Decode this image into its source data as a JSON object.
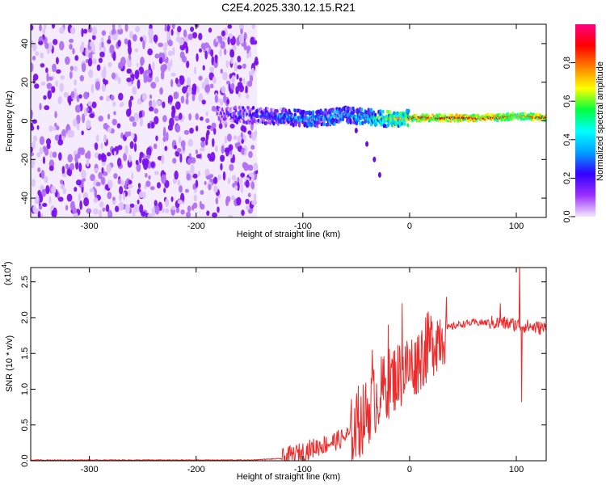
{
  "figure_title": "C2E4.2025.330.12.15.R21",
  "chart_data": [
    {
      "type": "heatmap",
      "title": "C2E4.2025.330.12.15.R21",
      "xlabel": "Height of straight line (km)",
      "ylabel": "Frequency (Hz)",
      "xlim": [
        -355,
        128
      ],
      "ylim": [
        -50,
        50
      ],
      "x_ticks": [
        -300,
        -200,
        -100,
        0,
        100
      ],
      "x_tick_labels": [
        "-300",
        "-200",
        "-100",
        "0",
        "100"
      ],
      "y_ticks": [
        -40,
        -20,
        0,
        20,
        40
      ],
      "y_tick_labels": [
        "-40",
        "-20",
        "0",
        "20",
        "40"
      ],
      "colorbar": {
        "label": "Normalized spectral amplitude",
        "range": [
          0,
          1
        ],
        "ticks": [
          0.0,
          0.2,
          0.4,
          0.6,
          0.8
        ],
        "tick_labels": [
          "0.0",
          "0.2",
          "0.4",
          "0.6",
          "0.8"
        ],
        "colormap": [
          "#f2e6ff",
          "#9b30ff",
          "#3300ff",
          "#00a0ff",
          "#00ffff",
          "#00ff40",
          "#ffff00",
          "#ff8000",
          "#ff0000",
          "#ff0080"
        ]
      },
      "regions": {
        "broadband_noise": {
          "x_range": [
            -355,
            -143
          ],
          "freq_range": [
            -50,
            50
          ],
          "amplitude": 0.15
        },
        "signal_track": [
          {
            "x": -180,
            "freq": 3,
            "amp": 0.25
          },
          {
            "x": -150,
            "freq": 3,
            "amp": 0.35
          },
          {
            "x": -120,
            "freq": 2,
            "amp": 0.45
          },
          {
            "x": -90,
            "freq": 1,
            "amp": 0.5
          },
          {
            "x": -60,
            "freq": 3,
            "amp": 0.5
          },
          {
            "x": -40,
            "freq": 2,
            "amp": 0.55
          },
          {
            "x": -20,
            "freq": 1,
            "amp": 0.8
          },
          {
            "x": 0,
            "freq": 1.5,
            "amp": 0.85
          },
          {
            "x": 40,
            "freq": 1.5,
            "amp": 0.9
          },
          {
            "x": 80,
            "freq": 1.5,
            "amp": 0.9
          },
          {
            "x": 100,
            "freq": 2.5,
            "amp": 0.75
          },
          {
            "x": 128,
            "freq": 1.5,
            "amp": 0.9
          }
        ],
        "descending_tail": [
          {
            "x": -50,
            "freq": -5
          },
          {
            "x": -40,
            "freq": -12
          },
          {
            "x": -33,
            "freq": -20
          },
          {
            "x": -28,
            "freq": -28
          }
        ]
      }
    },
    {
      "type": "line",
      "xlabel": "Height of straight line (km)",
      "ylabel": "SNR (10 * v/v)",
      "y_scale_label": "(x10",
      "y_scale_exponent": "4",
      "y_scale_suffix": ")",
      "xlim": [
        -355,
        128
      ],
      "ylim": [
        0,
        2.7
      ],
      "x_ticks": [
        -300,
        -200,
        -100,
        0,
        100
      ],
      "x_tick_labels": [
        "-300",
        "-200",
        "-100",
        "0",
        "100"
      ],
      "y_ticks": [
        0,
        0.5,
        1.0,
        1.5,
        2.0,
        2.5
      ],
      "y_tick_labels": [
        "0.0",
        "0.5",
        "1.0",
        "1.5",
        "2.0",
        "2.5"
      ],
      "color": "#ee2a2a",
      "series": [
        {
          "name": "SNR",
          "points": [
            [
              -355,
              0.01
            ],
            [
              -300,
              0.01
            ],
            [
              -200,
              0.01
            ],
            [
              -150,
              0.01
            ],
            [
              -120,
              0.03
            ],
            [
              -105,
              0.1
            ],
            [
              -90,
              0.18
            ],
            [
              -75,
              0.25
            ],
            [
              -65,
              0.3
            ],
            [
              -55,
              0.38
            ],
            [
              -45,
              0.55
            ],
            [
              -35,
              0.8
            ],
            [
              -25,
              1.0
            ],
            [
              -15,
              1.15
            ],
            [
              -5,
              1.25
            ],
            [
              5,
              1.38
            ],
            [
              15,
              1.55
            ],
            [
              25,
              1.72
            ],
            [
              35,
              1.85
            ],
            [
              45,
              1.9
            ],
            [
              60,
              1.93
            ],
            [
              75,
              1.93
            ],
            [
              90,
              1.92
            ],
            [
              100,
              1.9
            ],
            [
              110,
              1.88
            ],
            [
              120,
              1.86
            ],
            [
              128,
              1.85
            ]
          ],
          "spikes": [
            {
              "x": -48,
              "y": 1.05
            },
            {
              "x": -35,
              "y": 1.55
            },
            {
              "x": -20,
              "y": 1.9
            },
            {
              "x": -7,
              "y": 2.2
            },
            {
              "x": 5,
              "y": 1.65
            },
            {
              "x": 15,
              "y": 2.0
            },
            {
              "x": 85,
              "y": 2.2
            },
            {
              "x": 103,
              "y": 2.8
            },
            {
              "x": 105,
              "y": 0.82
            }
          ]
        }
      ]
    }
  ]
}
